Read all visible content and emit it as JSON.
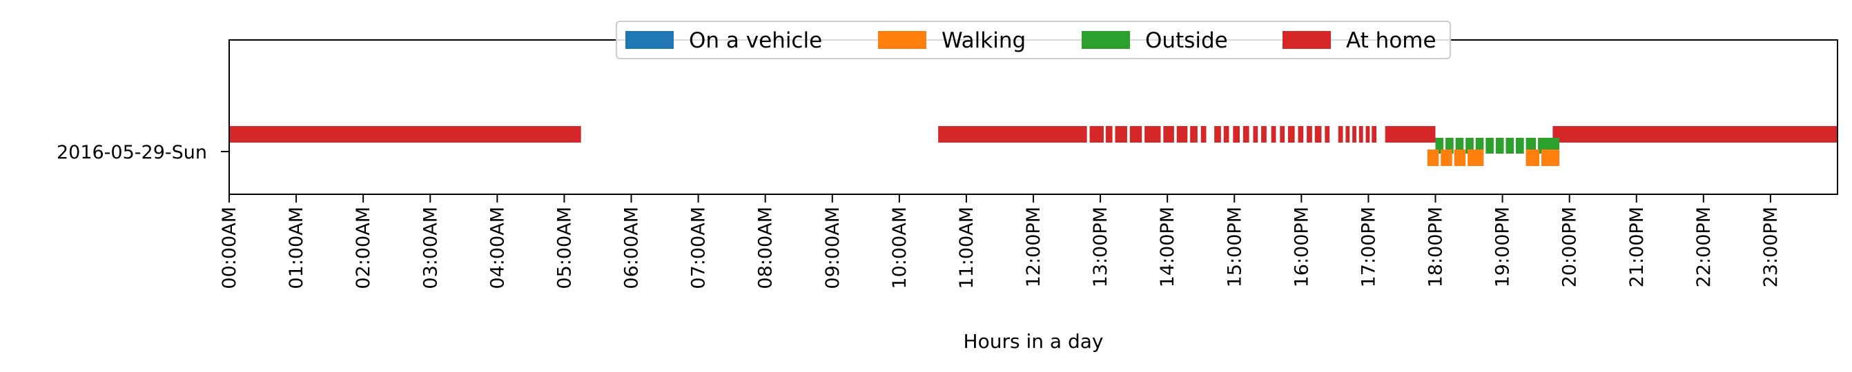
{
  "chart_data": {
    "type": "timeline",
    "title": "",
    "xlabel": "Hours in a day",
    "ylabel": "",
    "xlim": [
      0,
      24
    ],
    "x_unit": "hour of day",
    "x_ticks": [
      {
        "hour": 0,
        "label": "00:00AM"
      },
      {
        "hour": 1,
        "label": "01:00AM"
      },
      {
        "hour": 2,
        "label": "02:00AM"
      },
      {
        "hour": 3,
        "label": "03:00AM"
      },
      {
        "hour": 4,
        "label": "04:00AM"
      },
      {
        "hour": 5,
        "label": "05:00AM"
      },
      {
        "hour": 6,
        "label": "06:00AM"
      },
      {
        "hour": 7,
        "label": "07:00AM"
      },
      {
        "hour": 8,
        "label": "08:00AM"
      },
      {
        "hour": 9,
        "label": "09:00AM"
      },
      {
        "hour": 10,
        "label": "10:00AM"
      },
      {
        "hour": 11,
        "label": "11:00AM"
      },
      {
        "hour": 12,
        "label": "12:00PM"
      },
      {
        "hour": 13,
        "label": "13:00PM"
      },
      {
        "hour": 14,
        "label": "14:00PM"
      },
      {
        "hour": 15,
        "label": "15:00PM"
      },
      {
        "hour": 16,
        "label": "16:00PM"
      },
      {
        "hour": 17,
        "label": "17:00PM"
      },
      {
        "hour": 18,
        "label": "18:00PM"
      },
      {
        "hour": 19,
        "label": "19:00PM"
      },
      {
        "hour": 20,
        "label": "20:00PM"
      },
      {
        "hour": 21,
        "label": "21:00PM"
      },
      {
        "hour": 22,
        "label": "22:00PM"
      },
      {
        "hour": 23,
        "label": "23:00PM"
      }
    ],
    "rows": [
      "2016-05-29-Sun"
    ],
    "legend": {
      "placement": "top-center",
      "entries": [
        {
          "name": "On a vehicle",
          "color": "#1f77b4"
        },
        {
          "name": "Walking",
          "color": "#ff7f0e"
        },
        {
          "name": "Outside",
          "color": "#2ca02c"
        },
        {
          "name": "At home",
          "color": "#d62728"
        }
      ]
    },
    "series": [
      {
        "name": "At home",
        "color": "#d62728",
        "row": "2016-05-29-Sun",
        "intervals": [
          [
            0.0,
            5.25
          ],
          [
            10.58,
            12.8
          ],
          [
            12.84,
            13.05
          ],
          [
            13.08,
            13.18
          ],
          [
            13.22,
            13.4
          ],
          [
            13.44,
            13.62
          ],
          [
            13.66,
            13.9
          ],
          [
            13.94,
            14.1
          ],
          [
            14.14,
            14.3
          ],
          [
            14.34,
            14.45
          ],
          [
            14.5,
            14.58
          ],
          [
            14.7,
            14.8
          ],
          [
            14.84,
            14.92
          ],
          [
            14.98,
            15.08
          ],
          [
            15.13,
            15.22
          ],
          [
            15.28,
            15.35
          ],
          [
            15.4,
            15.48
          ],
          [
            15.55,
            15.62
          ],
          [
            15.68,
            15.75
          ],
          [
            15.8,
            15.9
          ],
          [
            15.95,
            16.03
          ],
          [
            16.08,
            16.16
          ],
          [
            16.2,
            16.3
          ],
          [
            16.35,
            16.42
          ],
          [
            16.55,
            16.62
          ],
          [
            16.66,
            16.72
          ],
          [
            16.76,
            16.82
          ],
          [
            16.86,
            16.92
          ],
          [
            16.96,
            17.02
          ],
          [
            17.05,
            17.12
          ],
          [
            17.25,
            18.0
          ],
          [
            19.75,
            24.0
          ]
        ]
      },
      {
        "name": "Outside",
        "color": "#2ca02c",
        "row": "2016-05-29-Sun",
        "intervals": [
          [
            18.0,
            18.12
          ],
          [
            18.15,
            18.27
          ],
          [
            18.3,
            18.42
          ],
          [
            18.45,
            18.57
          ],
          [
            18.6,
            18.72
          ],
          [
            18.75,
            18.87
          ],
          [
            18.9,
            19.02
          ],
          [
            19.05,
            19.17
          ],
          [
            19.2,
            19.32
          ],
          [
            19.35,
            19.5
          ],
          [
            19.53,
            19.85
          ]
        ]
      },
      {
        "name": "Walking",
        "color": "#ff7f0e",
        "row": "2016-05-29-Sun",
        "intervals": [
          [
            17.88,
            18.05
          ],
          [
            18.08,
            18.25
          ],
          [
            18.28,
            18.45
          ],
          [
            18.48,
            18.72
          ],
          [
            19.35,
            19.55
          ],
          [
            19.58,
            19.85
          ]
        ]
      },
      {
        "name": "On a vehicle",
        "color": "#1f77b4",
        "row": "2016-05-29-Sun",
        "intervals": []
      }
    ]
  }
}
